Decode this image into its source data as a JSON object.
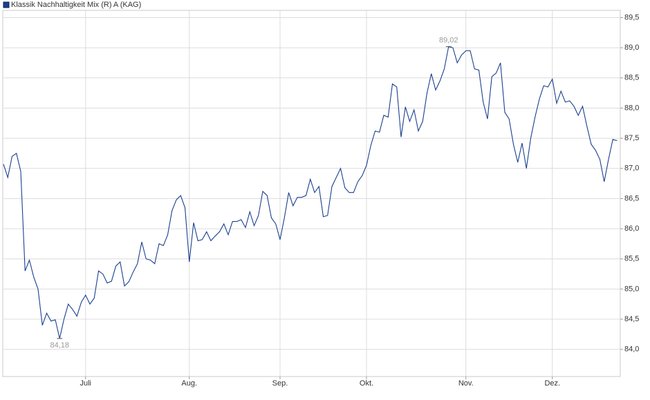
{
  "chart_data": {
    "type": "line",
    "series": [
      {
        "name": "Klassik Nachhaltigkeit Mix (R) A (KAG)",
        "color": "#1a3f8f",
        "values": [
          87.07,
          86.85,
          87.2,
          87.25,
          86.95,
          85.3,
          85.48,
          85.2,
          85.0,
          84.4,
          84.6,
          84.47,
          84.49,
          84.18,
          84.5,
          84.75,
          84.66,
          84.55,
          84.78,
          84.9,
          84.75,
          84.85,
          85.3,
          85.25,
          85.1,
          85.13,
          85.38,
          85.45,
          85.05,
          85.12,
          85.28,
          85.42,
          85.78,
          85.5,
          85.48,
          85.42,
          85.75,
          85.72,
          85.9,
          86.3,
          86.48,
          86.55,
          86.35,
          85.45,
          86.1,
          85.8,
          85.82,
          85.95,
          85.8,
          85.88,
          85.95,
          86.08,
          85.9,
          86.12,
          86.12,
          86.15,
          86.02,
          86.28,
          86.05,
          86.22,
          86.62,
          86.55,
          86.18,
          86.08,
          85.82,
          86.18,
          86.6,
          86.38,
          86.52,
          86.52,
          86.55,
          86.82,
          86.6,
          86.7,
          86.2,
          86.22,
          86.7,
          86.85,
          87.0,
          86.68,
          86.6,
          86.6,
          86.78,
          86.88,
          87.05,
          87.38,
          87.62,
          87.6,
          87.88,
          87.85,
          88.4,
          88.35,
          87.52,
          88.02,
          87.78,
          87.97,
          87.62,
          87.78,
          88.25,
          88.57,
          88.3,
          88.45,
          88.65,
          89.02,
          89.0,
          88.75,
          88.88,
          88.95,
          88.95,
          88.65,
          88.63,
          88.1,
          87.82,
          88.52,
          88.58,
          88.75,
          87.93,
          87.82,
          87.4,
          87.1,
          87.42,
          87.0,
          87.5,
          87.85,
          88.15,
          88.37,
          88.35,
          88.48,
          88.08,
          88.28,
          88.1,
          88.12,
          88.03,
          87.88,
          88.03,
          87.7,
          87.4,
          87.3,
          87.15,
          86.78,
          87.15,
          87.48,
          87.46
        ],
        "value_labels": [
          null,
          null,
          null,
          null,
          null,
          null,
          null,
          null,
          null,
          null,
          null,
          null,
          null,
          "84,18",
          null,
          null,
          null,
          null,
          null,
          null,
          null,
          null,
          null,
          null,
          null,
          null,
          null,
          null,
          null,
          null,
          null,
          null,
          null,
          null,
          null,
          null,
          null,
          null,
          null,
          null,
          null,
          null,
          null,
          null,
          null,
          null,
          null,
          null,
          null,
          null,
          null,
          null,
          null,
          null,
          null,
          null,
          null,
          null,
          null,
          null,
          null,
          null,
          null,
          null,
          null,
          null,
          null,
          null,
          null,
          null,
          null,
          null,
          null,
          null,
          null,
          null,
          null,
          null,
          null,
          null,
          null,
          null,
          null,
          null,
          null,
          null,
          null,
          null,
          null,
          null,
          null,
          null,
          null,
          null,
          null,
          null,
          null,
          null,
          null,
          null,
          null,
          null,
          null,
          "89,02",
          null,
          null,
          null,
          null,
          null,
          null,
          null,
          null,
          null,
          null,
          null,
          null,
          null,
          null,
          null,
          null,
          null,
          null,
          null,
          null,
          null,
          null,
          null,
          null,
          null,
          null,
          null,
          null,
          null,
          null,
          null,
          null,
          null,
          null,
          null,
          null,
          null,
          null,
          null
        ]
      }
    ],
    "categories": [
      null,
      null,
      null,
      null,
      null,
      null,
      null,
      null,
      null,
      null,
      null,
      null,
      null,
      null,
      null,
      null,
      null,
      null,
      null,
      "Juli",
      null,
      null,
      null,
      null,
      null,
      null,
      null,
      null,
      null,
      null,
      null,
      null,
      null,
      null,
      null,
      null,
      null,
      null,
      null,
      null,
      null,
      null,
      null,
      "Aug.",
      null,
      null,
      null,
      null,
      null,
      null,
      null,
      null,
      null,
      null,
      null,
      null,
      null,
      null,
      null,
      null,
      null,
      null,
      null,
      null,
      "Sep.",
      null,
      null,
      null,
      null,
      null,
      null,
      null,
      null,
      null,
      null,
      null,
      null,
      null,
      null,
      null,
      null,
      null,
      null,
      null,
      "Okt.",
      null,
      null,
      null,
      null,
      null,
      null,
      null,
      null,
      null,
      null,
      null,
      null,
      null,
      null,
      null,
      null,
      null,
      null,
      null,
      null,
      null,
      null,
      "Nov.",
      null,
      null,
      null,
      null,
      null,
      null,
      null,
      null,
      null,
      null,
      null,
      null,
      null,
      null,
      null,
      null,
      null,
      null,
      null,
      "Dez.",
      null,
      null,
      null,
      null,
      null,
      null,
      null,
      null,
      null,
      null,
      null,
      null,
      null,
      null,
      null
    ],
    "ylim": [
      83.55,
      89.62
    ],
    "yticks": [
      {
        "value": 84.0,
        "label": "84,0"
      },
      {
        "value": 84.5,
        "label": "84,5"
      },
      {
        "value": 85.0,
        "label": "85,0"
      },
      {
        "value": 85.5,
        "label": "85,5"
      },
      {
        "value": 86.0,
        "label": "86,0"
      },
      {
        "value": 86.5,
        "label": "86,5"
      },
      {
        "value": 87.0,
        "label": "87,0"
      },
      {
        "value": 87.5,
        "label": "87,5"
      },
      {
        "value": 88.0,
        "label": "88,0"
      },
      {
        "value": 88.5,
        "label": "88,5"
      },
      {
        "value": 89.0,
        "label": "89,0"
      },
      {
        "value": 89.5,
        "label": "89,5"
      }
    ],
    "grid": true
  }
}
